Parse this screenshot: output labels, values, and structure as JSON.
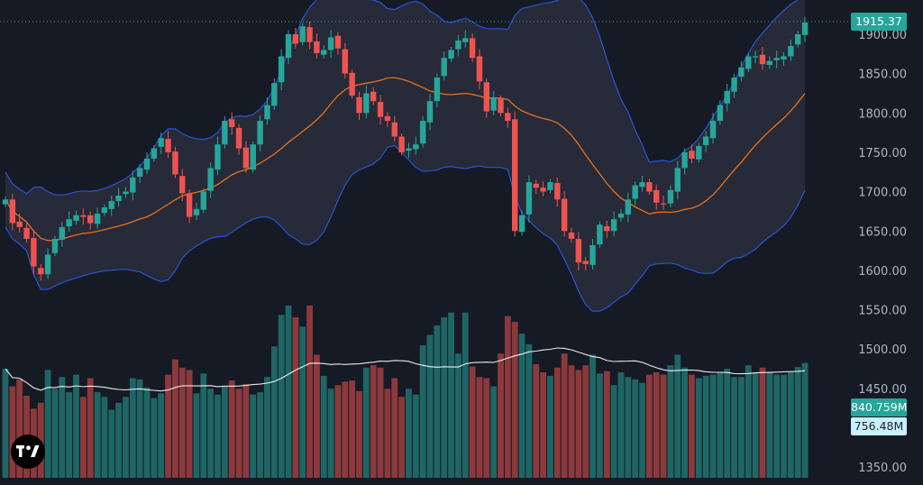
{
  "chart_data": {
    "type": "candlestick",
    "title": "",
    "xlabel": "",
    "ylabel": "",
    "ylim": [
      1330,
      1930
    ],
    "y_ticks": [
      "1900.00",
      "1850.00",
      "1800.00",
      "1750.00",
      "1700.00",
      "1650.00",
      "1600.00",
      "1550.00",
      "1500.00",
      "1450.00",
      "1350.00"
    ],
    "last_price_label": "1915.37",
    "volume_label": "840.759M",
    "volume_ma_label": "756.48M",
    "grid": false,
    "indicators": [
      "Bollinger Bands",
      "Volume",
      "Volume MA"
    ],
    "colors": {
      "background": "#161a25",
      "up": "#26a69a",
      "down": "#ef5350",
      "basis": "#e8711d",
      "band": "#2962ff",
      "band_fill": "#2a2e3c",
      "volume_ma": "#ffffff",
      "tick_text": "#b2b5be"
    },
    "closes": [
      1690,
      1660,
      1655,
      1640,
      1605,
      1595,
      1620,
      1640,
      1655,
      1665,
      1670,
      1668,
      1660,
      1672,
      1680,
      1688,
      1695,
      1700,
      1718,
      1730,
      1742,
      1755,
      1768,
      1750,
      1722,
      1698,
      1668,
      1678,
      1700,
      1730,
      1760,
      1790,
      1782,
      1755,
      1730,
      1760,
      1790,
      1810,
      1838,
      1872,
      1900,
      1888,
      1910,
      1890,
      1876,
      1880,
      1896,
      1882,
      1850,
      1822,
      1800,
      1825,
      1815,
      1795,
      1790,
      1770,
      1750,
      1755,
      1760,
      1790,
      1815,
      1845,
      1870,
      1880,
      1892,
      1895,
      1870,
      1840,
      1802,
      1820,
      1800,
      1790,
      1650,
      1670,
      1712,
      1705,
      1700,
      1712,
      1690,
      1650,
      1640,
      1610,
      1608,
      1632,
      1658,
      1650,
      1665,
      1672,
      1690,
      1708,
      1712,
      1700,
      1686,
      1684,
      1702,
      1730,
      1750,
      1742,
      1758,
      1770,
      1790,
      1810,
      1828,
      1845,
      1858,
      1872,
      1872,
      1862,
      1866,
      1870,
      1872,
      1885,
      1900,
      1915
    ],
    "volumes": [
      930,
      780,
      840,
      700,
      590,
      640,
      920,
      760,
      860,
      730,
      880,
      690,
      850,
      730,
      690,
      580,
      640,
      690,
      850,
      840,
      770,
      680,
      720,
      880,
      1010,
      940,
      920,
      720,
      890,
      760,
      710,
      780,
      830,
      760,
      800,
      710,
      730,
      860,
      1120,
      1390,
      1470,
      1370,
      1290,
      1470,
      1050,
      870,
      760,
      790,
      820,
      830,
      740,
      940,
      960,
      940,
      760,
      850,
      690,
      760,
      710,
      1130,
      1220,
      1300,
      1370,
      1410,
      1060,
      1410,
      950,
      860,
      850,
      780,
      1060,
      1380,
      1330,
      1230,
      1140,
      970,
      900,
      870,
      940,
      1060,
      960,
      920,
      960,
      1050,
      890,
      910,
      790,
      900,
      860,
      840,
      810,
      880,
      900,
      880,
      960,
      1050,
      940,
      880,
      850,
      870,
      880,
      900,
      930,
      860,
      860,
      960,
      900,
      940,
      900,
      880,
      880,
      900,
      945,
      980
    ]
  }
}
